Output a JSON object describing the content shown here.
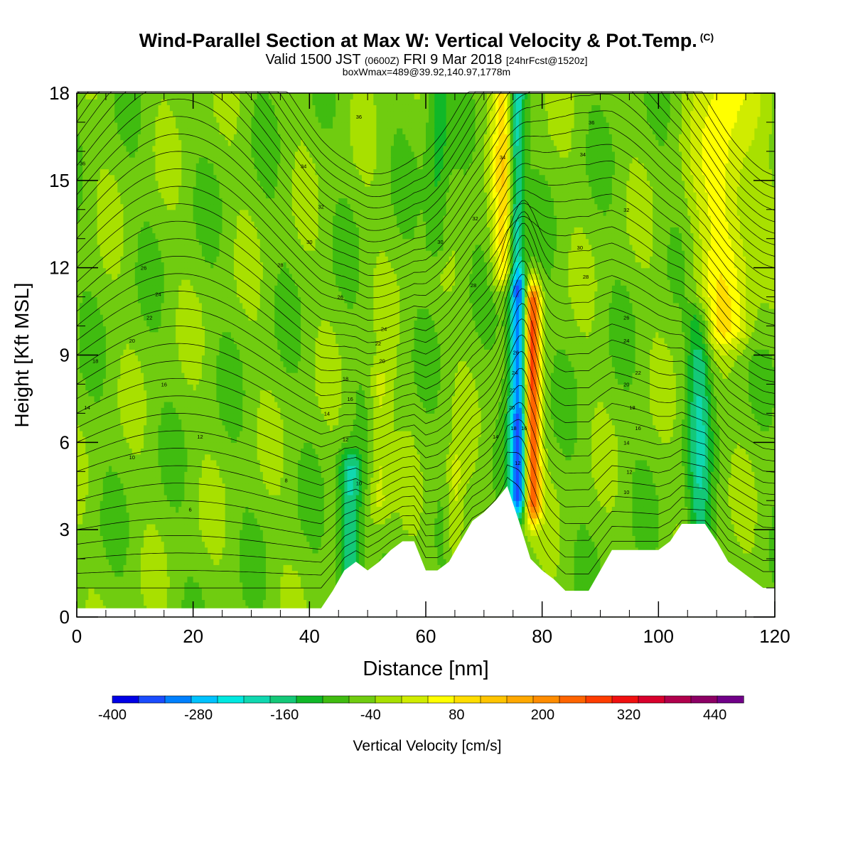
{
  "header": {
    "title": "Wind-Parallel Section at Max W: Vertical Velocity & Pot.Temp.",
    "title_unit": "(C)",
    "valid_prefix": "Valid 1500 JST",
    "valid_utc": "(0600Z)",
    "valid_date": "FRI 9 Mar 2018",
    "forecast": "[24hrFcst@1520z]",
    "boxmax": "boxWmax=489@39.92,140.97,1778m"
  },
  "chart_data": {
    "type": "heatmap",
    "title": "Wind-Parallel Section at Max W: Vertical Velocity & Pot.Temp.",
    "xlabel": "Distance [nm]",
    "ylabel": "Height [Kft MSL]",
    "xlim": [
      0,
      120
    ],
    "ylim": [
      0,
      18
    ],
    "x_ticks": [
      0,
      20,
      40,
      60,
      80,
      100,
      120
    ],
    "y_ticks": [
      0,
      3,
      6,
      9,
      12,
      15,
      18
    ],
    "colorbar": {
      "label": "Vertical Velocity [cm/s]",
      "bounds": [
        -400,
        480
      ],
      "step": 40,
      "tick_values": [
        -400,
        -280,
        -160,
        -40,
        80,
        200,
        320,
        440
      ],
      "colors": [
        "#0000e6",
        "#1a4cff",
        "#0080ff",
        "#00c2ff",
        "#00e8e0",
        "#10d8b0",
        "#14c878",
        "#10b828",
        "#40bc10",
        "#70cc10",
        "#a8e000",
        "#d0ec00",
        "#ffff00",
        "#ffdd00",
        "#ffc400",
        "#ffa800",
        "#ff8c00",
        "#ff6400",
        "#ff3c00",
        "#f01010",
        "#d8002c",
        "#b0004c",
        "#8c0064",
        "#700088"
      ]
    },
    "terrain": [
      [
        0,
        0.3
      ],
      [
        42,
        0.3
      ],
      [
        44,
        0.9
      ],
      [
        46,
        1.6
      ],
      [
        48,
        1.9
      ],
      [
        50,
        1.6
      ],
      [
        52,
        1.9
      ],
      [
        54,
        2.3
      ],
      [
        56,
        2.6
      ],
      [
        58,
        2.6
      ],
      [
        60,
        1.6
      ],
      [
        62,
        1.6
      ],
      [
        64,
        1.9
      ],
      [
        66,
        2.6
      ],
      [
        68,
        3.3
      ],
      [
        70,
        3.6
      ],
      [
        72,
        4.0
      ],
      [
        74,
        4.5
      ],
      [
        76,
        3.3
      ],
      [
        78,
        2.0
      ],
      [
        80,
        1.6
      ],
      [
        82,
        1.3
      ],
      [
        84,
        0.9
      ],
      [
        86,
        0.9
      ],
      [
        88,
        0.9
      ],
      [
        90,
        1.6
      ],
      [
        92,
        2.3
      ],
      [
        94,
        2.3
      ],
      [
        96,
        2.3
      ],
      [
        98,
        2.3
      ],
      [
        100,
        2.3
      ],
      [
        102,
        2.6
      ],
      [
        104,
        3.2
      ],
      [
        106,
        3.2
      ],
      [
        108,
        3.2
      ],
      [
        110,
        2.6
      ],
      [
        112,
        1.9
      ],
      [
        114,
        1.6
      ],
      [
        116,
        1.3
      ],
      [
        118,
        1.0
      ],
      [
        120,
        1.0
      ]
    ],
    "velocity_features": [
      {
        "x": 76.0,
        "y0": 4.2,
        "y1": 11.0,
        "w": 1.6,
        "v": -320
      },
      {
        "x": 78.3,
        "y0": 4.0,
        "y1": 10.8,
        "w": 1.4,
        "v": 360
      },
      {
        "x": 75.5,
        "y0": 12.0,
        "y1": 18.0,
        "w": 1.4,
        "v": -200
      },
      {
        "x": 73.5,
        "y0": 12.0,
        "y1": 18.0,
        "w": 2.0,
        "v": 160
      },
      {
        "x": 47.0,
        "y0": 1.5,
        "y1": 5.0,
        "w": 2.0,
        "v": -160
      },
      {
        "x": 107.0,
        "y0": 3.2,
        "y1": 10.0,
        "w": 2.0,
        "v": -120
      },
      {
        "x": 111.5,
        "y0": 10.0,
        "y1": 18.0,
        "w": 5.0,
        "v": 120
      },
      {
        "x": 62.0,
        "y0": 13.0,
        "y1": 18.0,
        "w": 2.0,
        "v": -80
      },
      {
        "x": 52.0,
        "y0": 4.0,
        "y1": 8.0,
        "w": 1.8,
        "v": 80
      },
      {
        "x": 65.0,
        "y0": 2.5,
        "y1": 5.0,
        "w": 1.5,
        "v": 80
      }
    ],
    "isentrope_labels": [
      {
        "x": 1,
        "y": 15.6,
        "text": "36"
      },
      {
        "x": 39,
        "y": 15.5,
        "text": "34"
      },
      {
        "x": 48.5,
        "y": 17.2,
        "text": "36"
      },
      {
        "x": 42,
        "y": 14.1,
        "text": "32"
      },
      {
        "x": 40,
        "y": 12.9,
        "text": "30"
      },
      {
        "x": 35,
        "y": 12.1,
        "text": "28"
      },
      {
        "x": 11.5,
        "y": 12.0,
        "text": "26"
      },
      {
        "x": 14,
        "y": 11.1,
        "text": "24"
      },
      {
        "x": 12.5,
        "y": 10.3,
        "text": "22"
      },
      {
        "x": 9.5,
        "y": 9.5,
        "text": "20"
      },
      {
        "x": 3.2,
        "y": 8.8,
        "text": "18"
      },
      {
        "x": 15,
        "y": 8.0,
        "text": "16"
      },
      {
        "x": 1.8,
        "y": 7.2,
        "text": "14"
      },
      {
        "x": 21.2,
        "y": 6.2,
        "text": "12"
      },
      {
        "x": 9.5,
        "y": 5.5,
        "text": "10"
      },
      {
        "x": 36,
        "y": 4.7,
        "text": "8"
      },
      {
        "x": 19.5,
        "y": 3.7,
        "text": "6"
      },
      {
        "x": 45.3,
        "y": 11.0,
        "text": "26"
      },
      {
        "x": 52.8,
        "y": 9.9,
        "text": "24"
      },
      {
        "x": 51.8,
        "y": 9.4,
        "text": "22"
      },
      {
        "x": 52.5,
        "y": 8.8,
        "text": "20"
      },
      {
        "x": 46.2,
        "y": 8.2,
        "text": "18"
      },
      {
        "x": 47,
        "y": 7.5,
        "text": "16"
      },
      {
        "x": 43,
        "y": 7.0,
        "text": "14"
      },
      {
        "x": 46.2,
        "y": 6.1,
        "text": "12"
      },
      {
        "x": 48.5,
        "y": 4.6,
        "text": "10"
      },
      {
        "x": 62.5,
        "y": 12.9,
        "text": "30"
      },
      {
        "x": 68.5,
        "y": 13.7,
        "text": "32"
      },
      {
        "x": 68.2,
        "y": 11.4,
        "text": "28"
      },
      {
        "x": 73.2,
        "y": 15.8,
        "text": "34"
      },
      {
        "x": 72,
        "y": 6.2,
        "text": "14"
      },
      {
        "x": 87,
        "y": 15.9,
        "text": "34"
      },
      {
        "x": 88.5,
        "y": 17.0,
        "text": "36"
      },
      {
        "x": 94.5,
        "y": 14.0,
        "text": "32"
      },
      {
        "x": 86.5,
        "y": 12.7,
        "text": "30"
      },
      {
        "x": 87.5,
        "y": 11.7,
        "text": "28"
      },
      {
        "x": 94.5,
        "y": 10.3,
        "text": "26"
      },
      {
        "x": 94.5,
        "y": 9.5,
        "text": "24"
      },
      {
        "x": 96.5,
        "y": 8.4,
        "text": "22"
      },
      {
        "x": 94.5,
        "y": 8.0,
        "text": "20"
      },
      {
        "x": 95.5,
        "y": 7.2,
        "text": "18"
      },
      {
        "x": 96.5,
        "y": 6.5,
        "text": "16"
      },
      {
        "x": 94.5,
        "y": 6.0,
        "text": "14"
      },
      {
        "x": 95,
        "y": 5.0,
        "text": "12"
      },
      {
        "x": 94.5,
        "y": 4.3,
        "text": "10"
      },
      {
        "x": 75.5,
        "y": 9.1,
        "text": "26"
      },
      {
        "x": 75.3,
        "y": 8.4,
        "text": "24"
      },
      {
        "x": 74.9,
        "y": 7.8,
        "text": "22"
      },
      {
        "x": 74.8,
        "y": 7.2,
        "text": "20"
      },
      {
        "x": 75.1,
        "y": 6.5,
        "text": "18"
      },
      {
        "x": 76.9,
        "y": 6.5,
        "text": "16"
      },
      {
        "x": 75.8,
        "y": 5.3,
        "text": "12"
      }
    ]
  }
}
